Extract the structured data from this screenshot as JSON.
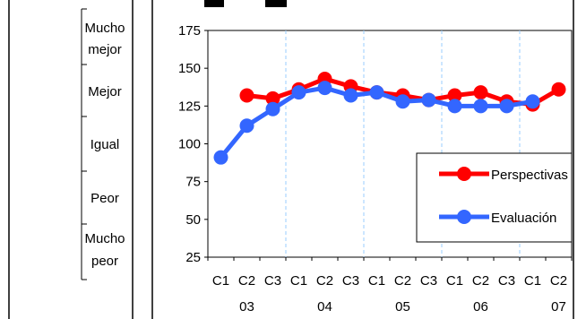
{
  "scale_labels": [
    {
      "lines": [
        "Mucho",
        "mejor"
      ]
    },
    {
      "lines": [
        "Mejor"
      ]
    },
    {
      "lines": [
        "Igual"
      ]
    },
    {
      "lines": [
        "Peor"
      ]
    },
    {
      "lines": [
        "Mucho",
        "peor"
      ]
    }
  ],
  "chart_data": {
    "type": "line",
    "title": "",
    "xlabel": "",
    "ylabel": "",
    "ylim": [
      25,
      175
    ],
    "yticks": [
      25,
      50,
      75,
      100,
      125,
      150,
      175
    ],
    "grid": {
      "vertical": true,
      "horizontal": false
    },
    "legend_position": "right",
    "categories": [
      "C1",
      "C2",
      "C3",
      "C1",
      "C2",
      "C3",
      "C1",
      "C2",
      "C3",
      "C1",
      "C2",
      "C3",
      "C1",
      "C2"
    ],
    "year_labels": [
      {
        "label": "03",
        "index": 1
      },
      {
        "label": "04",
        "index": 4
      },
      {
        "label": "05",
        "index": 7
      },
      {
        "label": "06",
        "index": 10
      },
      {
        "label": "07",
        "index": 13
      }
    ],
    "series": [
      {
        "name": "Perspectivas",
        "color": "#ff0000",
        "values": [
          null,
          132,
          130,
          136,
          143,
          138,
          134,
          132,
          129,
          132,
          134,
          128,
          126,
          136
        ]
      },
      {
        "name": "Evaluación",
        "color": "#3366ff",
        "values": [
          91,
          112,
          123,
          134,
          137,
          132,
          134,
          128,
          129,
          125,
          125,
          125,
          128,
          null
        ]
      }
    ]
  }
}
